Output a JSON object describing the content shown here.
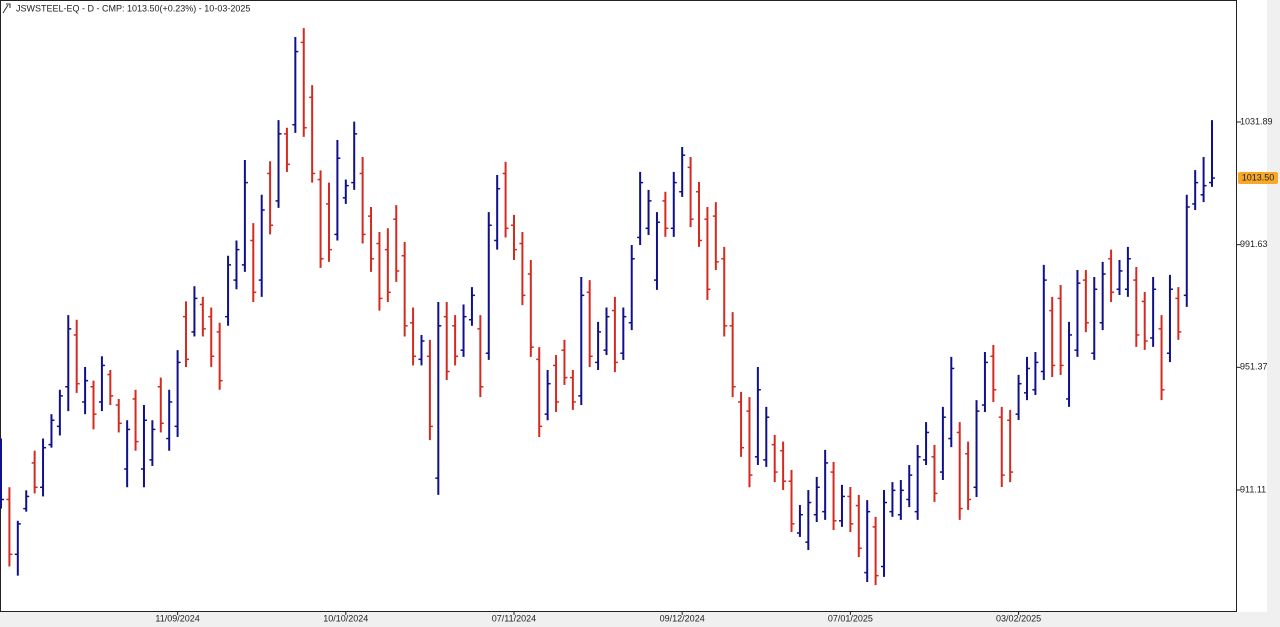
{
  "chart_data": {
    "type": "ohlc",
    "title": "JSWSTEEL-EQ - D - CMP: 1013.50(+0.23%) - 10-03-2025",
    "categories": [
      null,
      null,
      null,
      null,
      null,
      null,
      null,
      null,
      null,
      null,
      null,
      null,
      null,
      null,
      null,
      null,
      null,
      null,
      null,
      null,
      null,
      "11/09/2024",
      null,
      null,
      null,
      null,
      null,
      null,
      null,
      null,
      null,
      null,
      null,
      null,
      null,
      null,
      null,
      null,
      null,
      null,
      null,
      "10/10/2024",
      null,
      null,
      null,
      null,
      null,
      null,
      null,
      null,
      null,
      null,
      null,
      null,
      null,
      null,
      null,
      null,
      null,
      null,
      null,
      "07/11/2024",
      null,
      null,
      null,
      null,
      null,
      null,
      null,
      null,
      null,
      null,
      null,
      null,
      null,
      null,
      null,
      null,
      null,
      null,
      null,
      "09/12/2024",
      null,
      null,
      null,
      null,
      null,
      null,
      null,
      null,
      null,
      null,
      null,
      null,
      null,
      null,
      null,
      null,
      null,
      null,
      null,
      "07/01/2025",
      null,
      null,
      null,
      null,
      null,
      null,
      null,
      null,
      null,
      null,
      null,
      null,
      null,
      null,
      null,
      null,
      null,
      null,
      null,
      "03/02/2025",
      null,
      null,
      null,
      null,
      null,
      null,
      null,
      null,
      null,
      null,
      null,
      null,
      null,
      null,
      null,
      null,
      null,
      null,
      null,
      null,
      null,
      null,
      null
    ],
    "open": [
      906,
      908,
      890,
      905,
      920,
      912,
      926,
      932,
      945,
      962,
      940,
      945,
      940,
      949,
      939,
      918,
      941,
      918,
      921,
      945,
      928,
      932,
      968,
      963,
      972,
      968,
      963,
      968,
      980,
      985,
      993,
      980,
      1015,
      1006,
      1028,
      1031,
      1058,
      1040,
      1013,
      1005,
      995,
      1007,
      1012,
      1015,
      1001,
      992,
      990,
      1000,
      988,
      966,
      954,
      955,
      915,
      968,
      965,
      957,
      967,
      964,
      956,
      993,
      1015,
      998,
      992,
      982,
      954,
      936,
      952,
      957,
      948,
      942,
      976,
      953,
      957,
      970,
      956,
      966,
      994,
      997,
      980,
      1006,
      997,
      1009,
      1017,
      1009,
      1000,
      1001,
      987,
      965,
      940,
      937,
      922,
      921,
      926,
      924,
      914,
      897,
      894,
      903,
      904,
      917,
      901,
      909,
      906,
      884,
      899,
      886,
      904,
      903,
      908,
      904,
      921,
      922,
      917,
      928,
      930,
      923,
      912,
      939,
      955,
      935,
      934,
      936,
      943,
      944,
      950,
      970,
      974,
      941,
      957,
      980,
      956,
      966,
      987,
      977,
      977,
      980,
      973,
      961,
      964,
      956,
      974,
      975,
      1005,
      1008,
      1012
    ],
    "high": [
      928,
      912,
      901,
      911,
      924,
      928,
      936,
      944,
      968.5,
      967,
      951.5,
      947,
      955,
      950.5,
      941,
      934,
      944,
      939,
      934,
      948,
      944,
      957,
      973,
      978,
      974.5,
      971,
      966,
      988,
      993,
      1019.4,
      998.7,
      1008,
      1019,
      1032.5,
      1030,
      1059.8,
      1062.7,
      1044,
      1016,
      1012,
      1026,
      1013,
      1032,
      1020.4,
      1004,
      995.8,
      997,
      1004.6,
      992.5,
      971,
      962,
      960.4,
      972.8,
      972.8,
      968.5,
      972,
      977.7,
      968.5,
      1002.3,
      1014.5,
      1018.8,
      1001.4,
      995.8,
      986.6,
      958,
      950.5,
      955.4,
      960.4,
      950.5,
      981,
      980,
      966.3,
      971,
      974.5,
      971,
      991.5,
      1015.5,
      1009.6,
      1002.3,
      1009,
      1015.5,
      1023.7,
      1020.4,
      1012.2,
      1004,
      1005.6,
      990.9,
      969.5,
      943.3,
      941.6,
      951.5,
      938.4,
      929.2,
      927,
      917.7,
      906.2,
      911.1,
      915.4,
      924.3,
      920.3,
      912.8,
      912.1,
      909.5,
      907.8,
      902.3,
      911.1,
      913.7,
      914.4,
      919.3,
      925.9,
      933.4,
      925.9,
      938.4,
      954.8,
      933.4,
      927,
      940.6,
      956.4,
      958.7,
      938.4,
      937.4,
      948.9,
      954.8,
      956.4,
      985,
      974.5,
      978.4,
      966.3,
      983.3,
      983.3,
      981,
      986,
      990,
      986.6,
      990.9,
      984.3,
      976.1,
      981,
      968.5,
      981.7,
      977.7,
      1008,
      1016.1,
      1020.4,
      1032.5
    ],
    "low": [
      905,
      886,
      883,
      904,
      910,
      909,
      925,
      929,
      937,
      943,
      936,
      931,
      937,
      939,
      930,
      912,
      924,
      912,
      919,
      930,
      924,
      928.5,
      951.5,
      961.5,
      961.5,
      951.5,
      944,
      965,
      977,
      982.7,
      972.8,
      974.5,
      995,
      1003.7,
      1015.5,
      1028.3,
      1027,
      1012,
      984,
      986,
      993,
      1005,
      1009.6,
      992,
      982.7,
      970,
      972.8,
      979.4,
      961.5,
      952,
      952,
      927.5,
      909.5,
      947.2,
      952,
      954.8,
      965,
      941.6,
      953.8,
      990,
      994,
      986.6,
      971.8,
      954.8,
      928.5,
      934,
      936.7,
      945.6,
      937.4,
      939,
      951.5,
      950.5,
      955.4,
      949.8,
      953.8,
      963.6,
      991.5,
      994.8,
      976.8,
      994.2,
      994.2,
      1007.3,
      997.4,
      990.9,
      973.5,
      983.3,
      961.5,
      941.6,
      922,
      912,
      919.3,
      918.7,
      913.7,
      911.1,
      897.3,
      895.7,
      891.4,
      900.6,
      901.3,
      898,
      899,
      897.3,
      889.1,
      880.9,
      879.9,
      882.6,
      902.3,
      901.3,
      905.5,
      901.3,
      919.3,
      907.2,
      914.4,
      925.2,
      901.3,
      904.6,
      908.8,
      936.7,
      940,
      912.1,
      913.7,
      934.1,
      940.6,
      942.3,
      947.2,
      948.2,
      948.9,
      938.4,
      954.8,
      962.9,
      953.8,
      963.6,
      972.8,
      975.1,
      974.5,
      958.1,
      957.1,
      958.1,
      940.6,
      953.1,
      960.4,
      971.2,
      1003,
      1005.6,
      1010.6
    ],
    "close": [
      908,
      890,
      900,
      909,
      912,
      925,
      934,
      942,
      964,
      946,
      947,
      936,
      952,
      942,
      933,
      931,
      927,
      934,
      931,
      933,
      940,
      953,
      954,
      974,
      964,
      955,
      947,
      985,
      990,
      1012,
      976,
      1003,
      998,
      1028,
      1018,
      1055,
      1030,
      1015,
      987,
      990,
      1020,
      1011,
      1028,
      995,
      987,
      974,
      976,
      983,
      965,
      955,
      960,
      932,
      965,
      950,
      955,
      968,
      975,
      945,
      998,
      1010,
      997,
      990,
      975,
      958,
      932,
      946,
      940,
      948,
      940,
      975,
      955,
      963,
      968,
      953,
      968,
      987,
      1012,
      1006,
      999,
      997,
      1012,
      1021,
      1000,
      993,
      977,
      986,
      965,
      945,
      925,
      916,
      944,
      935,
      917,
      914,
      900,
      903,
      907,
      912,
      920,
      901,
      909,
      900,
      892,
      904,
      883,
      907,
      911,
      911,
      916,
      922,
      930,
      910,
      935,
      951,
      905,
      908,
      937,
      953,
      944,
      916,
      917,
      946,
      951,
      953,
      980,
      952,
      952,
      962,
      979,
      966,
      977,
      982,
      976,
      983,
      987,
      962,
      960,
      977,
      944,
      977,
      963,
      1004,
      1012,
      1011,
      1013.5
    ],
    "up_color": "#10108a",
    "down_color": "#d42a20",
    "ylim": [
      871.07,
      1071.93
    ],
    "yticks": [
      911.11,
      951.37,
      991.63,
      1031.89
    ],
    "current_price": {
      "value": 1013.5,
      "label": "1013.50"
    },
    "current_price_color": "#f7a829"
  }
}
